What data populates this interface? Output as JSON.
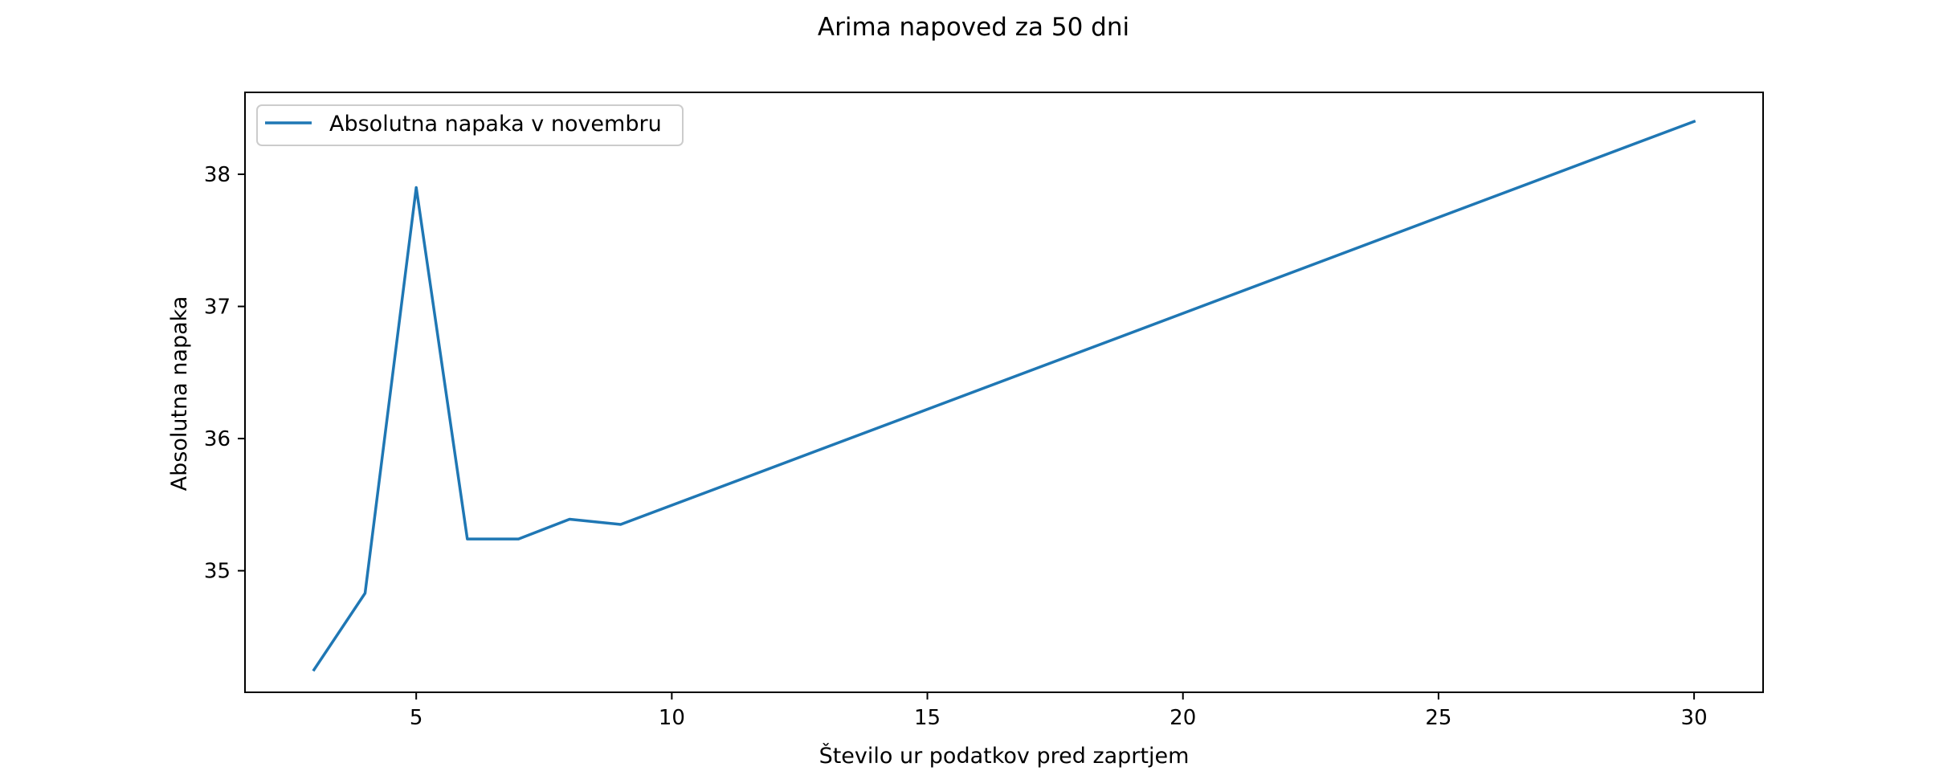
{
  "chart_data": {
    "type": "line",
    "title": "Arima napoved za 50 dni",
    "xlabel": "Število ur podatkov pred zaprtjem",
    "ylabel": "Absolutna napaka",
    "xlim": [
      1.65,
      31.35
    ],
    "ylim": [
      34.08,
      38.62
    ],
    "xticks": [
      5,
      10,
      15,
      20,
      25,
      30
    ],
    "yticks": [
      35,
      36,
      37,
      38
    ],
    "grid": false,
    "legend_position": "top-left",
    "series": [
      {
        "name": "Absolutna napaka v novembru",
        "color": "#1f77b4",
        "x": [
          3,
          4,
          5,
          6,
          7,
          8,
          9,
          30
        ],
        "y": [
          34.25,
          34.83,
          37.9,
          35.24,
          35.24,
          35.39,
          35.35,
          38.4
        ]
      }
    ]
  }
}
